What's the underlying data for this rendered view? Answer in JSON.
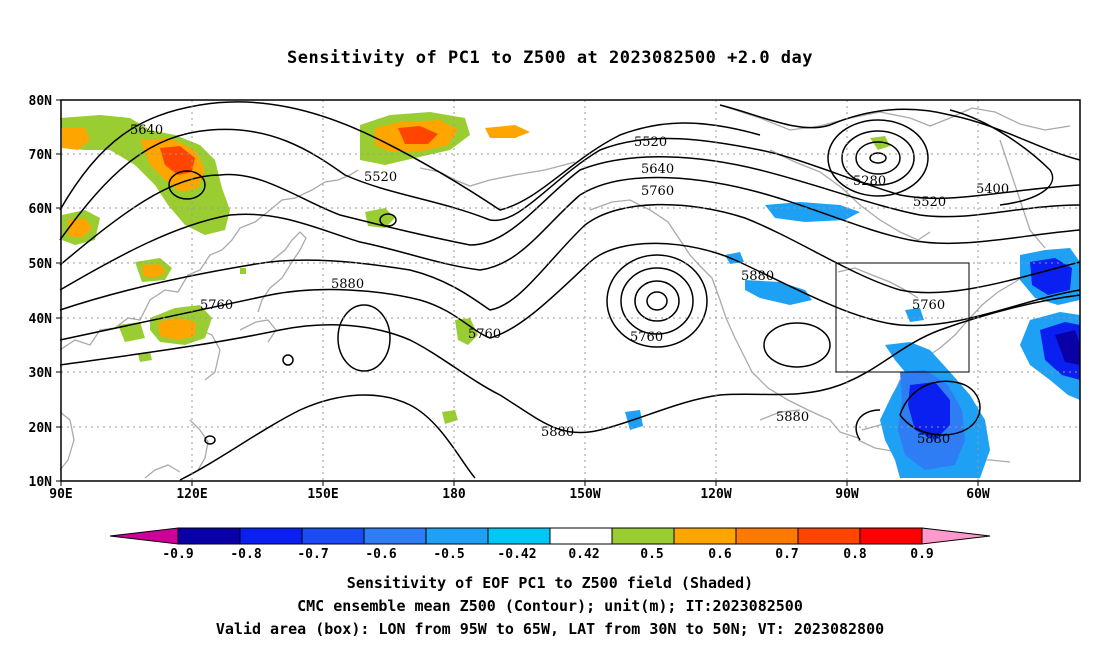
{
  "title": "Sensitivity of PC1 to Z500 at 2023082500 +2.0 day",
  "lat_labels": [
    "80N",
    "70N",
    "60N",
    "50N",
    "40N",
    "30N",
    "20N",
    "10N"
  ],
  "lon_labels": [
    "90E",
    "120E",
    "150E",
    "180",
    "150W",
    "120W",
    "90W",
    "60W"
  ],
  "contour_labels": {
    "c5640a": "5640",
    "c5520a": "5520",
    "c5520b": "5520",
    "c5640b": "5640",
    "c5760a": "5760",
    "c5280": "5280",
    "c5400": "5400",
    "c5520c": "5520",
    "c5760b": "5760",
    "c5880a": "5880",
    "c5880b": "5880",
    "c5760c": "5760",
    "c5760d": "5760",
    "c5760e": "5760",
    "c5880c": "5880",
    "c5880d": "5880",
    "c5880e": "5880"
  },
  "colorbar": {
    "labels": [
      "-0.9",
      "-0.8",
      "-0.7",
      "-0.6",
      "-0.5",
      "-0.42",
      "0.42",
      "0.5",
      "0.6",
      "0.7",
      "0.8",
      "0.9"
    ],
    "colors": [
      "#0a00a8",
      "#0a20f0",
      "#1b4cf2",
      "#2f7df5",
      "#1ea0f5",
      "#00c8f5",
      "#ffffff",
      "#9acd32",
      "#ffa500",
      "#ff7b00",
      "#ff4500",
      "#ff0000"
    ],
    "low_extend": "#cc0099",
    "high_extend": "#ff99cc"
  },
  "caption": [
    "Sensitivity of EOF PC1 to Z500 field (Shaded)",
    "CMC ensemble mean Z500 (Contour); unit(m); IT:2023082500",
    "Valid area (box): LON from 95W to 65W, LAT from 30N to 50N; VT: 2023082800"
  ]
}
